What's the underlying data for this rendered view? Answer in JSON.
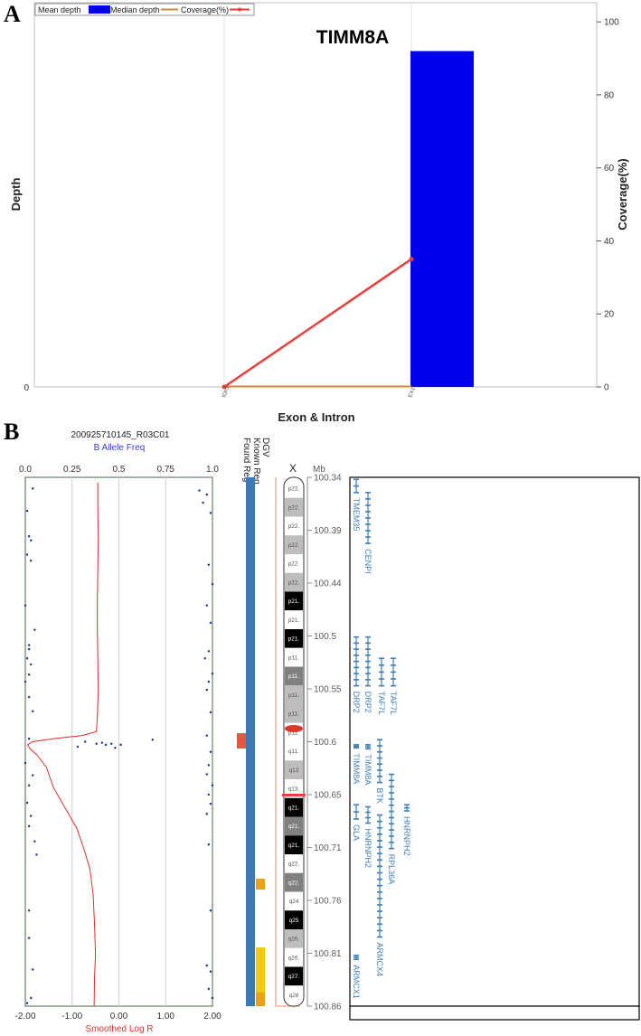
{
  "panel_a": {
    "letter": "A",
    "title": "TIMM8A",
    "ylabel_left": "Depth",
    "ylabel_right": "Coverage(%)",
    "xlabel": "Exon & Intron",
    "legend": [
      "Mean depth",
      "Median depth",
      "Coverage(%)"
    ],
    "left_tick_label": "0",
    "x_ticks": [
      "IOn1",
      "EX1"
    ]
  },
  "panel_b": {
    "letter": "B",
    "sample_id": "200925710145_R03C01",
    "baf_label": "B Allele Freq",
    "logr_label": "Smoothed Log R",
    "baf_ticks": [
      "0.0",
      "0.25",
      "0.5",
      "0.75",
      "1.0"
    ],
    "logr_ticks": [
      "-2.00",
      "-1.00",
      "0.00",
      "1.00",
      "2.00"
    ],
    "track_labels": [
      "DGV",
      "Known Reg",
      "Found Reg"
    ],
    "chrom_label": "X",
    "mb_unit": "Mb",
    "mb_ticks": [
      "100.34",
      "100.39",
      "100.44",
      "100.5",
      "100.55",
      "100.6",
      "100.65",
      "100.71",
      "100.76",
      "100.81",
      "100.86"
    ],
    "bands": [
      "p22.",
      "p22.",
      "p22.",
      "p22.",
      "p22.",
      "p22.",
      "p21.",
      "p21.",
      "p21.",
      "p11.",
      "p11.",
      "p11.",
      "p11.",
      "p11.",
      "q11.",
      "q12",
      "q13.",
      "q21.",
      "q21.",
      "q21.",
      "q22.",
      "q22.",
      "q24",
      "q25",
      "q26.",
      "q26.",
      "q27.",
      "q28"
    ],
    "genes": [
      "TMEM35",
      "CENPI",
      "DRP2",
      "DRP2",
      "TAF7L",
      "TAF7L",
      "TIMM8A",
      "TIMM8A",
      "BTK",
      "RPL36A",
      "HNRNPH2",
      "GLA",
      "HNRNPH2",
      "ARMCX4",
      "ARMCX1"
    ]
  },
  "chart_data": [
    {
      "type": "bar",
      "title": "TIMM8A",
      "xlabel": "Exon & Intron",
      "ylabel": "Depth",
      "y2label": "Coverage(%)",
      "categories": [
        "IOn1",
        "EX1"
      ],
      "y2lim": [
        0,
        105
      ],
      "y2ticks": [
        0,
        20,
        40,
        60,
        80,
        100
      ],
      "series": [
        {
          "name": "Mean depth",
          "type": "line",
          "axis": "left",
          "values": [
            0,
            0
          ]
        },
        {
          "name": "Median depth",
          "type": "bar",
          "axis": "right",
          "color": "#0000ee",
          "values": [
            0,
            92
          ]
        },
        {
          "name": "Coverage(%)",
          "type": "line",
          "axis": "right",
          "color": "#e8413c",
          "values": [
            0,
            35
          ]
        }
      ],
      "legend_position": "top-left"
    },
    {
      "type": "scatter",
      "title": "200925710145_R03C01",
      "xlabel": "Smoothed Log R",
      "x2label": "B Allele Freq",
      "ylabel": "Mb",
      "xlim": [
        -2.0,
        2.0
      ],
      "x2lim": [
        0.0,
        1.0
      ],
      "ylim": [
        100.34,
        100.86
      ],
      "series": [
        {
          "name": "B Allele Freq",
          "color": "#1f2f8f",
          "points": [
            [
              0.04,
              100.351
            ],
            [
              0.01,
              100.373
            ],
            [
              0.02,
              100.398
            ],
            [
              0.03,
              100.402
            ],
            [
              0.01,
              100.416
            ],
            [
              0.03,
              100.422
            ],
            [
              0.0,
              100.466
            ],
            [
              0.05,
              100.49
            ],
            [
              0.02,
              100.505
            ],
            [
              0.02,
              100.509
            ],
            [
              0.01,
              100.518
            ],
            [
              0.03,
              100.524
            ],
            [
              0.02,
              100.534
            ],
            [
              0.0,
              100.541
            ],
            [
              0.02,
              100.556
            ],
            [
              0.04,
              100.57
            ],
            [
              0.02,
              100.597
            ],
            [
              0.0,
              100.621
            ],
            [
              0.04,
              100.633
            ],
            [
              0.02,
              100.643
            ],
            [
              0.01,
              100.66
            ],
            [
              0.03,
              100.673
            ],
            [
              0.02,
              100.683
            ],
            [
              0.05,
              100.698
            ],
            [
              0.06,
              100.711
            ],
            [
              0.02,
              100.766
            ],
            [
              0.02,
              100.793
            ],
            [
              0.04,
              100.824
            ],
            [
              0.03,
              100.852
            ],
            [
              0.01,
              100.857
            ],
            [
              0.28,
              100.605
            ],
            [
              0.32,
              100.6
            ],
            [
              0.38,
              100.602
            ],
            [
              0.41,
              100.601
            ],
            [
              0.43,
              100.603
            ],
            [
              0.46,
              100.602
            ],
            [
              0.48,
              100.606
            ],
            [
              0.51,
              100.603
            ],
            [
              0.68,
              100.598
            ],
            [
              0.93,
              100.353
            ],
            [
              0.97,
              100.357
            ],
            [
              0.95,
              100.365
            ],
            [
              0.99,
              100.375
            ],
            [
              0.98,
              100.426
            ],
            [
              1.0,
              100.445
            ],
            [
              0.97,
              100.466
            ],
            [
              0.99,
              100.483
            ],
            [
              0.98,
              100.511
            ],
            [
              0.96,
              100.518
            ],
            [
              1.0,
              100.533
            ],
            [
              0.98,
              100.541
            ],
            [
              0.97,
              100.549
            ],
            [
              0.99,
              100.571
            ],
            [
              0.97,
              100.594
            ],
            [
              0.99,
              100.61
            ],
            [
              0.98,
              100.623
            ],
            [
              0.97,
              100.632
            ],
            [
              1.0,
              100.643
            ],
            [
              0.98,
              100.652
            ],
            [
              0.99,
              100.661
            ],
            [
              0.97,
              100.671
            ],
            [
              0.98,
              100.701
            ],
            [
              0.99,
              100.766
            ],
            [
              0.97,
              100.82
            ],
            [
              0.99,
              100.826
            ],
            [
              0.98,
              100.843
            ],
            [
              1.0,
              100.852
            ]
          ]
        },
        {
          "name": "Smoothed Log R",
          "color": "#d9302c",
          "points": [
            [
              -0.45,
              100.345
            ],
            [
              -0.45,
              100.37
            ],
            [
              -0.44,
              100.4
            ],
            [
              -0.45,
              100.43
            ],
            [
              -0.46,
              100.46
            ],
            [
              -0.46,
              100.49
            ],
            [
              -0.45,
              100.52
            ],
            [
              -0.44,
              100.55
            ],
            [
              -0.46,
              100.575
            ],
            [
              -0.48,
              100.59
            ],
            [
              -0.8,
              100.594
            ],
            [
              -1.4,
              100.597
            ],
            [
              -1.85,
              100.6
            ],
            [
              -1.95,
              100.603
            ],
            [
              -1.9,
              100.607
            ],
            [
              -1.75,
              100.613
            ],
            [
              -1.55,
              100.625
            ],
            [
              -1.4,
              100.645
            ],
            [
              -1.15,
              100.665
            ],
            [
              -0.9,
              100.685
            ],
            [
              -0.75,
              100.705
            ],
            [
              -0.62,
              100.725
            ],
            [
              -0.55,
              100.75
            ],
            [
              -0.52,
              100.78
            ],
            [
              -0.5,
              100.81
            ],
            [
              -0.52,
              100.83
            ],
            [
              -0.53,
              100.86
            ]
          ]
        }
      ]
    }
  ]
}
